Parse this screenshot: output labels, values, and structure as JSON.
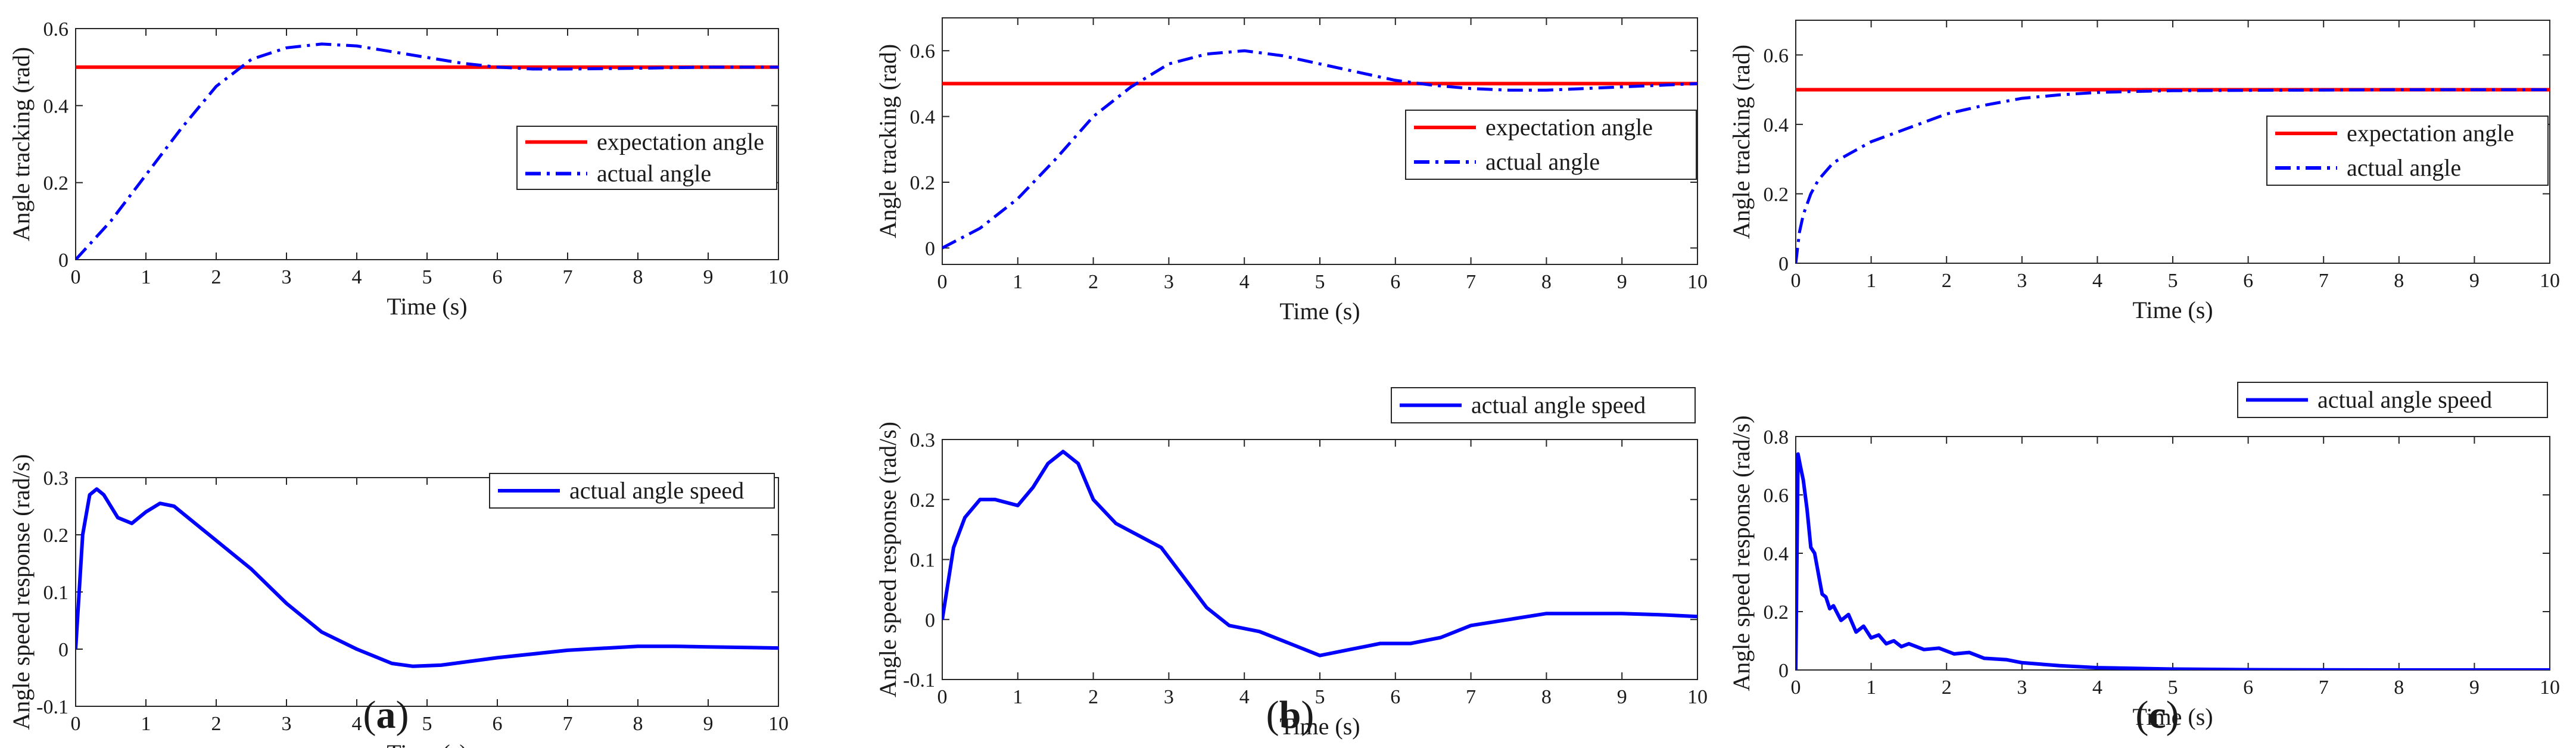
{
  "chart_data": [
    {
      "type": "line",
      "panel": "a",
      "position": "top",
      "xlabel": "Time (s)",
      "ylabel": "Angle tracking (rad)",
      "xlim": [
        0,
        10
      ],
      "ylim": [
        0,
        0.6
      ],
      "xticks": [
        "0",
        "1",
        "2",
        "3",
        "4",
        "5",
        "6",
        "7",
        "8",
        "9",
        "10"
      ],
      "yticks": [
        "0",
        "0.2",
        "0.4",
        "0.6"
      ],
      "legend_position": "center-right",
      "series": [
        {
          "name": "expectation angle",
          "style": "solid",
          "color": "#ff0000",
          "x": [
            0,
            10
          ],
          "y": [
            0.5,
            0.5
          ]
        },
        {
          "name": "actual angle",
          "style": "dashdot",
          "color": "#0000ff",
          "x": [
            0,
            0.5,
            1,
            1.5,
            2,
            2.5,
            3,
            3.5,
            4,
            4.5,
            5,
            5.5,
            6,
            6.5,
            7,
            8,
            9,
            10
          ],
          "y": [
            0,
            0.1,
            0.22,
            0.34,
            0.45,
            0.52,
            0.55,
            0.56,
            0.555,
            0.54,
            0.525,
            0.51,
            0.5,
            0.495,
            0.495,
            0.497,
            0.5,
            0.5
          ]
        }
      ]
    },
    {
      "type": "line",
      "panel": "a",
      "position": "bottom",
      "xlabel": "Time (s)",
      "ylabel": "Angle speed response (rad/s)",
      "xlim": [
        0,
        10
      ],
      "ylim": [
        -0.1,
        0.3
      ],
      "xticks": [
        "0",
        "1",
        "2",
        "3",
        "4",
        "5",
        "6",
        "7",
        "8",
        "9",
        "10"
      ],
      "yticks": [
        "-0.1",
        "0",
        "0.1",
        "0.2",
        "0.3"
      ],
      "legend_position": "top-right",
      "series": [
        {
          "name": "actual angle speed",
          "style": "solid",
          "color": "#0000ff",
          "x": [
            0,
            0.1,
            0.2,
            0.3,
            0.4,
            0.6,
            0.8,
            1.0,
            1.2,
            1.4,
            1.7,
            2.0,
            2.5,
            3.0,
            3.5,
            4.0,
            4.5,
            4.8,
            5.2,
            6.0,
            7.0,
            8.0,
            8.5,
            9.0,
            10.0
          ],
          "y": [
            0,
            0.2,
            0.27,
            0.28,
            0.27,
            0.23,
            0.22,
            0.24,
            0.255,
            0.25,
            0.22,
            0.19,
            0.14,
            0.08,
            0.03,
            0.0,
            -0.025,
            -0.03,
            -0.028,
            -0.015,
            -0.002,
            0.005,
            0.005,
            0.004,
            0.002
          ]
        }
      ]
    },
    {
      "type": "line",
      "panel": "b",
      "position": "top",
      "xlabel": "Time (s)",
      "ylabel": "Angle tracking (rad)",
      "xlim": [
        0,
        10
      ],
      "ylim": [
        -0.05,
        0.7
      ],
      "xticks": [
        "0",
        "1",
        "2",
        "3",
        "4",
        "5",
        "6",
        "7",
        "8",
        "9",
        "10"
      ],
      "yticks": [
        "0",
        "0.2",
        "0.4",
        "0.6"
      ],
      "legend_position": "center-right",
      "series": [
        {
          "name": "expectation angle",
          "style": "solid",
          "color": "#ff0000",
          "x": [
            0,
            10
          ],
          "y": [
            0.5,
            0.5
          ]
        },
        {
          "name": "actual angle",
          "style": "dashdot",
          "color": "#0000ff",
          "x": [
            0,
            0.5,
            1,
            1.5,
            2,
            2.5,
            3,
            3.5,
            4,
            4.5,
            5,
            5.5,
            6,
            6.5,
            7,
            7.5,
            8,
            8.5,
            9,
            9.5,
            10
          ],
          "y": [
            0,
            0.06,
            0.15,
            0.27,
            0.4,
            0.49,
            0.56,
            0.59,
            0.6,
            0.585,
            0.56,
            0.535,
            0.51,
            0.495,
            0.485,
            0.48,
            0.48,
            0.485,
            0.49,
            0.495,
            0.5
          ]
        }
      ]
    },
    {
      "type": "line",
      "panel": "b",
      "position": "bottom",
      "xlabel": "Time (s)",
      "ylabel": "Angle speed response (rad/s)",
      "xlim": [
        0,
        10
      ],
      "ylim": [
        -0.1,
        0.3
      ],
      "xticks": [
        "0",
        "1",
        "2",
        "3",
        "4",
        "5",
        "6",
        "7",
        "8",
        "9",
        "10"
      ],
      "yticks": [
        "-0.1",
        "0",
        "0.1",
        "0.2",
        "0.3"
      ],
      "legend_position": "top-right",
      "series": [
        {
          "name": "actual angle speed",
          "style": "solid",
          "color": "#0000ff",
          "x": [
            0,
            0.15,
            0.3,
            0.5,
            0.7,
            1.0,
            1.2,
            1.4,
            1.6,
            1.8,
            2.0,
            2.3,
            2.6,
            2.9,
            3.2,
            3.5,
            3.8,
            4.2,
            4.6,
            5.0,
            5.4,
            5.8,
            6.2,
            6.6,
            7.0,
            7.5,
            8.0,
            8.5,
            9.0,
            9.5,
            10.0
          ],
          "y": [
            0,
            0.12,
            0.17,
            0.2,
            0.2,
            0.19,
            0.22,
            0.26,
            0.28,
            0.26,
            0.2,
            0.16,
            0.14,
            0.12,
            0.07,
            0.02,
            -0.01,
            -0.02,
            -0.04,
            -0.06,
            -0.05,
            -0.04,
            -0.04,
            -0.03,
            -0.01,
            0.0,
            0.01,
            0.01,
            0.01,
            0.008,
            0.005
          ]
        }
      ]
    },
    {
      "type": "line",
      "panel": "c",
      "position": "top",
      "xlabel": "Time (s)",
      "ylabel": "Angle tracking (rad)",
      "xlim": [
        0,
        10
      ],
      "ylim": [
        0,
        0.7
      ],
      "xticks": [
        "0",
        "1",
        "2",
        "3",
        "4",
        "5",
        "6",
        "7",
        "8",
        "9",
        "10"
      ],
      "yticks": [
        "0",
        "0.2",
        "0.4",
        "0.6"
      ],
      "legend_position": "center-right",
      "series": [
        {
          "name": "expectation angle",
          "style": "solid",
          "color": "#ff0000",
          "x": [
            0,
            10
          ],
          "y": [
            0.5,
            0.5
          ]
        },
        {
          "name": "actual angle",
          "style": "dashdot",
          "color": "#0000ff",
          "x": [
            0,
            0.05,
            0.1,
            0.2,
            0.3,
            0.5,
            0.75,
            1.0,
            1.5,
            2.0,
            2.5,
            3.0,
            3.5,
            4.0,
            4.5,
            5.0,
            6.0,
            7.0,
            8.0,
            9.0,
            10.0
          ],
          "y": [
            0,
            0.09,
            0.14,
            0.2,
            0.24,
            0.29,
            0.32,
            0.35,
            0.39,
            0.43,
            0.455,
            0.475,
            0.485,
            0.492,
            0.495,
            0.497,
            0.498,
            0.499,
            0.5,
            0.5,
            0.5
          ]
        }
      ]
    },
    {
      "type": "line",
      "panel": "c",
      "position": "bottom",
      "xlabel": "Time (s)",
      "ylabel": "Angle speed response (rad/s)",
      "xlim": [
        0,
        10
      ],
      "ylim": [
        0,
        0.8
      ],
      "xticks": [
        "0",
        "1",
        "2",
        "3",
        "4",
        "5",
        "6",
        "7",
        "8",
        "9",
        "10"
      ],
      "yticks": [
        "0",
        "0.2",
        "0.4",
        "0.6",
        "0.8"
      ],
      "legend_position": "top-right",
      "series": [
        {
          "name": "actual angle speed",
          "style": "solid",
          "color": "#0000ff",
          "x": [
            0,
            0.03,
            0.06,
            0.1,
            0.15,
            0.2,
            0.25,
            0.3,
            0.35,
            0.4,
            0.45,
            0.5,
            0.6,
            0.7,
            0.8,
            0.9,
            1.0,
            1.1,
            1.2,
            1.3,
            1.4,
            1.5,
            1.7,
            1.9,
            2.1,
            2.3,
            2.5,
            2.8,
            3.0,
            3.5,
            4.0,
            5.0,
            6.0,
            8.0,
            10.0
          ],
          "y": [
            0,
            0.74,
            0.7,
            0.65,
            0.55,
            0.42,
            0.4,
            0.33,
            0.26,
            0.25,
            0.21,
            0.22,
            0.17,
            0.19,
            0.13,
            0.15,
            0.11,
            0.12,
            0.09,
            0.1,
            0.08,
            0.09,
            0.07,
            0.075,
            0.055,
            0.06,
            0.04,
            0.035,
            0.025,
            0.015,
            0.008,
            0.003,
            0.001,
            0.0,
            0.0
          ]
        }
      ]
    }
  ],
  "captions": [
    "a",
    "b",
    "c"
  ]
}
